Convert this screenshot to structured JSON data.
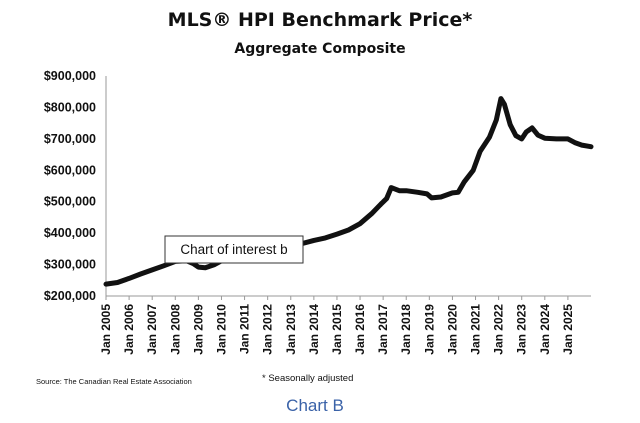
{
  "chart_data": {
    "type": "line",
    "title": "MLS® HPI Benchmark Price*",
    "subtitle": "Aggregate Composite",
    "xlabel": "",
    "ylabel": "",
    "ylim": [
      200000,
      900000
    ],
    "xlim": [
      2005,
      2026
    ],
    "grid": false,
    "y_ticks": [
      {
        "value": 200000,
        "label": "$200,000"
      },
      {
        "value": 300000,
        "label": "$300,000"
      },
      {
        "value": 400000,
        "label": "$400,000"
      },
      {
        "value": 500000,
        "label": "$500,000"
      },
      {
        "value": 600000,
        "label": "$600,000"
      },
      {
        "value": 700000,
        "label": "$700,000"
      },
      {
        "value": 800000,
        "label": "$800,000"
      },
      {
        "value": 900000,
        "label": "$900,000"
      }
    ],
    "x_ticks": [
      {
        "value": 2005,
        "label": "Jan 2005"
      },
      {
        "value": 2006,
        "label": "Jan 2006"
      },
      {
        "value": 2007,
        "label": "Jan 2007"
      },
      {
        "value": 2008,
        "label": "Jan 2008"
      },
      {
        "value": 2009,
        "label": "Jan 2009"
      },
      {
        "value": 2010,
        "label": "Jan 2010"
      },
      {
        "value": 2011,
        "label": "Jan 2011"
      },
      {
        "value": 2012,
        "label": "Jan 2012"
      },
      {
        "value": 2013,
        "label": "Jan 2013"
      },
      {
        "value": 2014,
        "label": "Jan 2014"
      },
      {
        "value": 2015,
        "label": "Jan 2015"
      },
      {
        "value": 2016,
        "label": "Jan 2016"
      },
      {
        "value": 2017,
        "label": "Jan 2017"
      },
      {
        "value": 2018,
        "label": "Jan 2018"
      },
      {
        "value": 2019,
        "label": "Jan 2019"
      },
      {
        "value": 2020,
        "label": "Jan 2020"
      },
      {
        "value": 2021,
        "label": "Jan 2021"
      },
      {
        "value": 2022,
        "label": "Jan 2022"
      },
      {
        "value": 2023,
        "label": "Jan 2023"
      },
      {
        "value": 2024,
        "label": "Jan 2024"
      },
      {
        "value": 2025,
        "label": "Jan 2025"
      }
    ],
    "series": [
      {
        "name": "MLS® HPI Benchmark Price",
        "x": [
          2005.0,
          2005.5,
          2006.0,
          2006.5,
          2007.0,
          2007.5,
          2008.0,
          2008.5,
          2008.8,
          2009.0,
          2009.3,
          2009.7,
          2010.0,
          2010.5,
          2011.0,
          2011.5,
          2012.0,
          2012.5,
          2013.0,
          2013.5,
          2014.0,
          2014.5,
          2015.0,
          2015.5,
          2016.0,
          2016.5,
          2016.9,
          2017.15,
          2017.35,
          2017.7,
          2018.0,
          2018.5,
          2018.9,
          2019.1,
          2019.5,
          2020.0,
          2020.25,
          2020.5,
          2020.9,
          2021.2,
          2021.6,
          2021.9,
          2022.1,
          2022.25,
          2022.5,
          2022.75,
          2023.0,
          2023.2,
          2023.45,
          2023.7,
          2024.0,
          2024.5,
          2025.0,
          2025.3,
          2025.6,
          2026.0
        ],
        "y": [
          238000,
          243000,
          256000,
          270000,
          283000,
          296000,
          310000,
          312000,
          302000,
          292000,
          290000,
          300000,
          312000,
          318000,
          325000,
          332000,
          340000,
          350000,
          358000,
          367000,
          377000,
          385000,
          397000,
          410000,
          430000,
          462000,
          492000,
          510000,
          545000,
          535000,
          535000,
          530000,
          525000,
          512000,
          515000,
          528000,
          530000,
          562000,
          600000,
          660000,
          705000,
          760000,
          828000,
          810000,
          745000,
          710000,
          700000,
          722000,
          735000,
          712000,
          702000,
          700000,
          700000,
          688000,
          680000,
          675000
        ]
      }
    ],
    "annotations": {
      "callout": "Chart of interest b",
      "source": "Source: The Canadian Real Estate Association",
      "note": "* Seasonally adjusted",
      "caption": "Chart B"
    }
  }
}
